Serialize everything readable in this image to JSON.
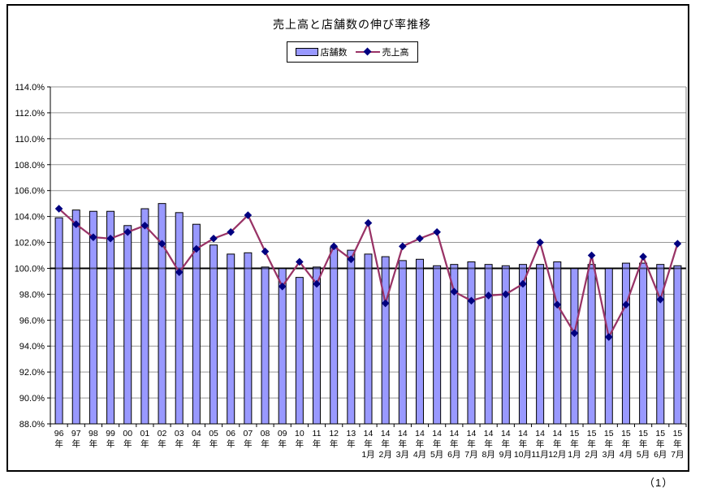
{
  "page": {
    "page_number_label": "（1）"
  },
  "chart": {
    "title": "売上高と店舗数の伸び率推移",
    "legend": {
      "bar_label": "店舗数",
      "line_label": "売上高"
    },
    "colors": {
      "bar_fill": "#9999FF",
      "bar_border": "#000000",
      "line": "#993366",
      "marker": "#000080",
      "gridline": "#969696",
      "plot_border": "#808080",
      "axis": "#000000",
      "baseline": "#000000"
    }
  },
  "chart_data": {
    "type": "bar",
    "subtype": "bar-and-line-combo",
    "title": "売上高と店舗数の伸び率推移",
    "categories": [
      "96年",
      "97年",
      "98年",
      "99年",
      "00年",
      "01年",
      "02年",
      "03年",
      "04年",
      "05年",
      "06年",
      "07年",
      "08年",
      "09年",
      "10年",
      "11年",
      "12年",
      "13年",
      "14年1月",
      "14年2月",
      "14年3月",
      "14年4月",
      "14年5月",
      "14年6月",
      "14年7月",
      "14年8月",
      "14年9月",
      "14年10月",
      "14年11月",
      "14年12月",
      "15年1月",
      "15年2月",
      "15年3月",
      "15年4月",
      "15年5月",
      "15年6月",
      "15年7月"
    ],
    "series": [
      {
        "name": "店舗数",
        "type": "bar",
        "values": [
          103.9,
          104.5,
          104.4,
          104.4,
          103.3,
          104.6,
          105.0,
          104.3,
          103.4,
          101.8,
          101.1,
          101.2,
          100.1,
          100.0,
          99.3,
          100.1,
          101.6,
          101.4,
          101.1,
          100.9,
          100.6,
          100.7,
          100.2,
          100.3,
          100.5,
          100.3,
          100.2,
          100.3,
          100.3,
          100.5,
          100.0,
          100.3,
          100.0,
          100.4,
          100.4,
          100.3,
          100.2
        ]
      },
      {
        "name": "売上高",
        "type": "line",
        "values": [
          104.6,
          103.4,
          102.4,
          102.3,
          102.8,
          103.3,
          101.9,
          99.7,
          101.5,
          102.3,
          102.8,
          104.1,
          101.3,
          98.6,
          100.5,
          98.8,
          101.7,
          100.7,
          103.5,
          97.3,
          101.7,
          102.3,
          102.8,
          98.2,
          97.5,
          97.9,
          98.0,
          98.8,
          102.0,
          97.2,
          95.0,
          101.0,
          94.7,
          97.2,
          100.9,
          97.6,
          101.9
        ]
      }
    ],
    "xlabel": "",
    "ylabel": "",
    "ylim": [
      88.0,
      114.0
    ],
    "ytick_step": 2.0,
    "ytick_labels": [
      "88.0%",
      "90.0%",
      "92.0%",
      "94.0%",
      "96.0%",
      "98.0%",
      "100.0%",
      "102.0%",
      "104.0%",
      "106.0%",
      "108.0%",
      "110.0%",
      "112.0%",
      "114.0%"
    ],
    "baseline": 100.0,
    "grid": true,
    "legend_position": "top",
    "units": "percent"
  }
}
